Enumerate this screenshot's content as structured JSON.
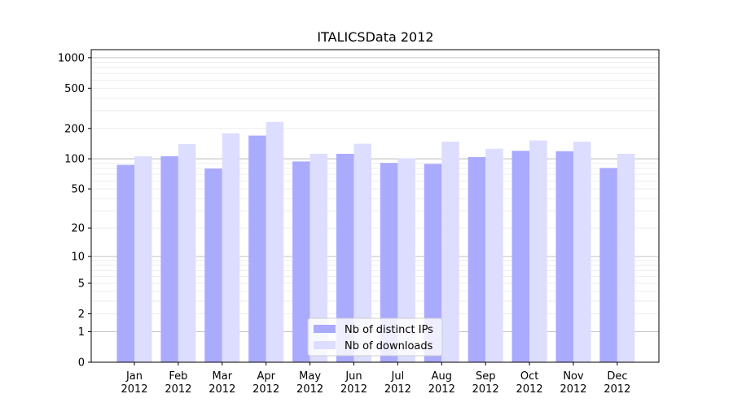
{
  "chart_data": {
    "type": "bar",
    "title": "ITALICSData 2012",
    "xlabel": "",
    "ylabel": "",
    "yscale": "symlog",
    "ylim": [
      0,
      1200
    ],
    "yticks": [
      0,
      1,
      2,
      5,
      10,
      20,
      50,
      100,
      200,
      500,
      1000
    ],
    "grid": true,
    "legend_position": "lower-center",
    "categories": [
      {
        "month": "Jan",
        "year": "2012"
      },
      {
        "month": "Feb",
        "year": "2012"
      },
      {
        "month": "Mar",
        "year": "2012"
      },
      {
        "month": "Apr",
        "year": "2012"
      },
      {
        "month": "May",
        "year": "2012"
      },
      {
        "month": "Jun",
        "year": "2012"
      },
      {
        "month": "Jul",
        "year": "2012"
      },
      {
        "month": "Aug",
        "year": "2012"
      },
      {
        "month": "Sep",
        "year": "2012"
      },
      {
        "month": "Oct",
        "year": "2012"
      },
      {
        "month": "Nov",
        "year": "2012"
      },
      {
        "month": "Dec",
        "year": "2012"
      }
    ],
    "series": [
      {
        "name": "Nb of distinct IPs",
        "color": "#aaaaff",
        "values": [
          87,
          106,
          80,
          170,
          94,
          112,
          91,
          89,
          104,
          120,
          119,
          81
        ]
      },
      {
        "name": "Nb of downloads",
        "color": "#ddddff",
        "values": [
          106,
          140,
          179,
          232,
          112,
          141,
          101,
          148,
          126,
          152,
          148,
          112
        ]
      }
    ]
  }
}
